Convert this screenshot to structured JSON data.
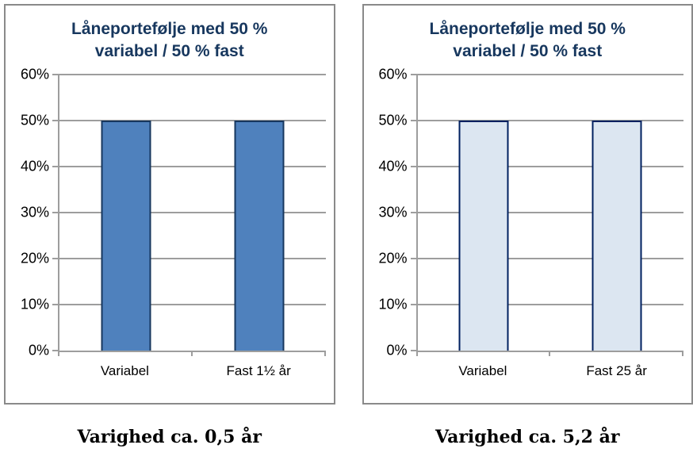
{
  "page": {
    "background": "#ffffff"
  },
  "chart_data": [
    {
      "type": "bar",
      "title": "Låneportefølje med 50 % variabel / 50 % fast",
      "title_lines": [
        "Låneportefølje med 50 %",
        "variabel / 50 % fast"
      ],
      "categories": [
        "Variabel",
        "Fast 1½ år"
      ],
      "values": [
        50,
        50
      ],
      "ylim": [
        0,
        60
      ],
      "ytick_labels": [
        "0%",
        "10%",
        "20%",
        "30%",
        "40%",
        "50%",
        "60%"
      ],
      "grid": true,
      "legend": false,
      "caption": "Varighed ca. 0,5 år",
      "colors": {
        "bar_fill": "#4f81bd",
        "bar_border": "#17375e",
        "title_text": "#17375e",
        "grid_line": "#9d9d9d",
        "panel_border": "#8a8a8a",
        "axis_text": "#000000"
      }
    },
    {
      "type": "bar",
      "title": "Låneportefølje med 50 % variabel / 50 % fast",
      "title_lines": [
        "Låneportefølje med 50 %",
        "variabel / 50 % fast"
      ],
      "categories": [
        "Variabel",
        "Fast 25 år"
      ],
      "values": [
        50,
        50
      ],
      "ylim": [
        0,
        60
      ],
      "ytick_labels": [
        "0%",
        "10%",
        "20%",
        "30%",
        "40%",
        "50%",
        "60%"
      ],
      "grid": true,
      "legend": false,
      "caption": "Varighed ca. 5,2 år",
      "colors": {
        "bar_fill": "#dce6f1",
        "bar_border": "#002060",
        "title_text": "#17375e",
        "grid_line": "#9d9d9d",
        "panel_border": "#8a8a8a",
        "axis_text": "#000000"
      }
    }
  ]
}
